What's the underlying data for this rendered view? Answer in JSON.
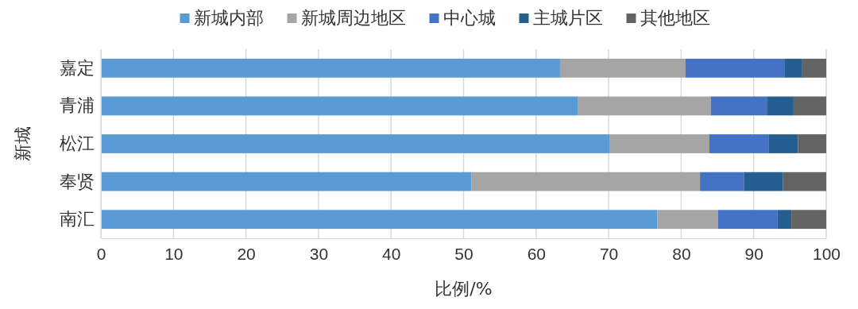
{
  "chart_data": {
    "type": "bar",
    "orientation": "horizontal",
    "stacked": true,
    "xlabel": "比例/%",
    "ylabel": "新城",
    "categories": [
      "嘉定",
      "青浦",
      "松江",
      "奉贤",
      "南汇"
    ],
    "series": [
      {
        "name": "新城内部",
        "color": "#5b9bd5",
        "values": [
          63.3,
          65.8,
          70.1,
          51.1,
          76.7
        ]
      },
      {
        "name": "新城周边地区",
        "color": "#a5a5a5",
        "values": [
          17.3,
          18.3,
          13.8,
          31.5,
          8.4
        ]
      },
      {
        "name": "中心城",
        "color": "#4472c4",
        "values": [
          13.7,
          7.8,
          8.2,
          6.1,
          8.2
        ]
      },
      {
        "name": "主城片区",
        "color": "#255e91",
        "values": [
          2.4,
          3.6,
          4.0,
          5.3,
          1.9
        ]
      },
      {
        "name": "其他地区",
        "color": "#636363",
        "values": [
          3.3,
          4.5,
          3.9,
          6.0,
          4.8
        ]
      }
    ],
    "xlim": [
      0,
      100
    ],
    "xticks": [
      0,
      10,
      20,
      30,
      40,
      50,
      60,
      70,
      80,
      90,
      100
    ],
    "grid": "x",
    "legend": "top"
  }
}
